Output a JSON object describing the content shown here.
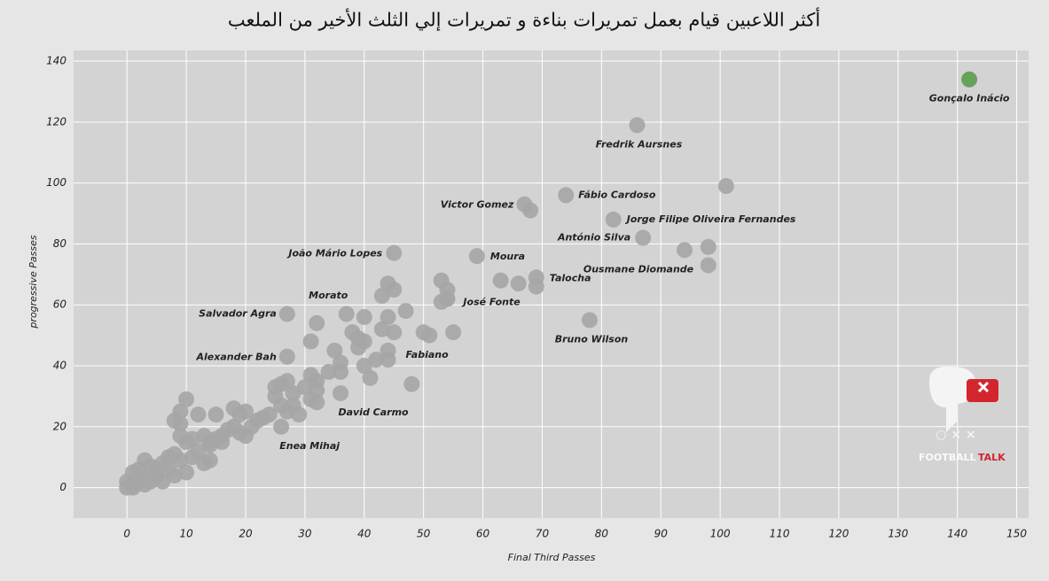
{
  "chart_data": {
    "type": "scatter",
    "title": "أكثر اللاعبين قيام بعمل تمريرات بناءة و تمريرات إلي الثلث الأخير من الملعب",
    "x_label": "Final Third Passes",
    "y_label": "progressive Passes",
    "xlim": [
      -9,
      152
    ],
    "ylim": [
      -10,
      143.5
    ],
    "xticks": [
      0,
      10,
      20,
      30,
      40,
      50,
      60,
      70,
      80,
      90,
      100,
      110,
      120,
      130,
      140,
      150
    ],
    "yticks": [
      0,
      20,
      40,
      60,
      80,
      100,
      120,
      140
    ],
    "grid": true,
    "series": [
      {
        "color": "#a6a6a6",
        "x": [
          86,
          67,
          74,
          82,
          87,
          94,
          45,
          59,
          69,
          54,
          78,
          27,
          32,
          27,
          44,
          36,
          26,
          101,
          68,
          98,
          98,
          53,
          54,
          54,
          53,
          63,
          66,
          69,
          44,
          45,
          43,
          44,
          47,
          45,
          43,
          50,
          51,
          55,
          37,
          40,
          38,
          39,
          40,
          39,
          35,
          36,
          40,
          42,
          44,
          41,
          48,
          36,
          34,
          31,
          32,
          31,
          30,
          32,
          31,
          32,
          29,
          28,
          27,
          26,
          25,
          25,
          26,
          28,
          27,
          24,
          22,
          23,
          20,
          19,
          18,
          21,
          19,
          20,
          17,
          16,
          15,
          15,
          14,
          13,
          12,
          10,
          9,
          8,
          9,
          9,
          10,
          12,
          11,
          13,
          14,
          8,
          7,
          9,
          6,
          7,
          10,
          8,
          6,
          5,
          3,
          4,
          2,
          1,
          3,
          2,
          1,
          0,
          0,
          1,
          3,
          5,
          4,
          14,
          16,
          18,
          11
        ],
        "y": [
          119,
          93,
          96,
          88,
          82,
          78,
          77,
          76,
          69,
          62,
          55,
          57,
          54,
          43,
          45,
          31,
          20,
          99,
          91,
          79,
          73,
          68,
          65,
          62,
          61,
          68,
          67,
          66,
          67,
          65,
          63,
          56,
          58,
          51,
          52,
          51,
          50,
          51,
          57,
          56,
          51,
          49,
          48,
          46,
          45,
          41,
          40,
          42,
          42,
          36,
          34,
          38,
          38,
          48,
          35,
          37,
          33,
          32,
          29,
          28,
          24,
          31,
          35,
          34,
          30,
          33,
          27,
          27,
          25,
          24,
          22,
          23,
          25,
          24,
          26,
          20,
          18,
          17,
          19,
          17,
          24,
          16,
          15,
          17,
          24,
          29,
          25,
          22,
          21,
          17,
          15,
          12,
          10,
          8,
          9,
          11,
          10,
          9,
          8,
          6,
          5,
          4,
          2,
          6,
          9,
          7,
          6,
          5,
          3,
          2,
          1,
          0,
          2,
          0,
          1,
          4,
          2,
          14,
          15,
          20,
          16
        ],
        "labels": [
          "Fredrik Aursnes",
          "Victor Gomez",
          "Fábio Cardoso",
          "Jorge Filipe Oliveira Fernandes",
          "António Silva",
          "Ousmane Diomande",
          "João Mário Lopes",
          "Moura",
          "Talocha",
          "José Fonte",
          "Bruno Wilson",
          "Salvador Agra",
          "Morato",
          "Alexander Bah",
          "Fabiano",
          "David Carmo",
          "Enea Mihaj",
          null,
          null,
          null,
          null,
          null,
          null,
          null,
          null,
          null,
          null,
          null,
          null,
          null,
          null,
          null,
          null,
          null,
          null,
          null,
          null,
          null,
          null,
          null,
          null,
          null,
          null,
          null,
          null,
          null,
          null,
          null,
          null,
          null,
          null,
          null,
          null,
          null,
          null,
          null,
          null,
          null,
          null,
          null,
          null,
          null,
          null,
          null,
          null,
          null,
          null,
          null,
          null,
          null,
          null,
          null,
          null,
          null,
          null,
          null,
          null,
          null,
          null,
          null,
          null,
          null,
          null,
          null,
          null,
          null,
          null,
          null,
          null,
          null,
          null,
          null,
          null,
          null,
          null,
          null,
          null,
          null,
          null,
          null,
          null,
          null,
          null,
          null,
          null,
          null,
          null,
          null,
          null,
          null,
          null,
          null,
          null,
          null,
          null,
          null,
          null,
          null,
          null,
          null,
          null,
          null
        ]
      },
      {
        "color": "#5b9e4f",
        "x": [
          142
        ],
        "y": [
          134
        ],
        "labels": [
          "Gonçalo Inácio"
        ]
      }
    ],
    "logo": {
      "word1": "FOOTBALL",
      "word2": "TALK"
    }
  }
}
